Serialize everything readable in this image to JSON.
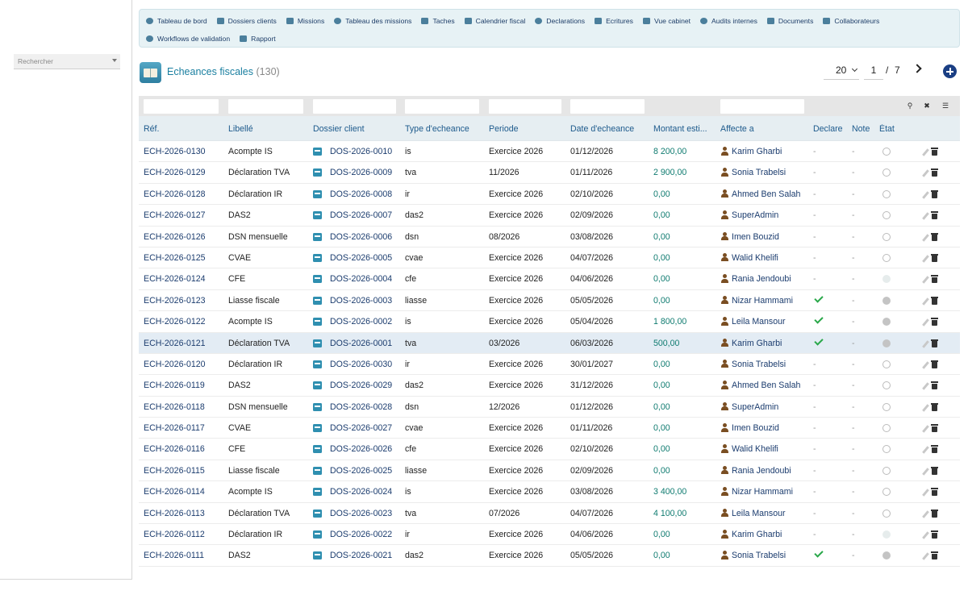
{
  "sidebar": {
    "search_placeholder": "Rechercher"
  },
  "menu": [
    {
      "label": "Tableau de bord",
      "icon": "dashboard-icon"
    },
    {
      "label": "Dossiers clients",
      "icon": "folder-open-icon"
    },
    {
      "label": "Missions",
      "icon": "briefcase-icon"
    },
    {
      "label": "Tableau des missions",
      "icon": "board-icon"
    },
    {
      "label": "Taches",
      "icon": "tasks-list-icon"
    },
    {
      "label": "Calendrier fiscal",
      "icon": "calendar-icon"
    },
    {
      "label": "Declarations",
      "icon": "file-icon"
    },
    {
      "label": "Ecritures",
      "icon": "ledger-icon"
    },
    {
      "label": "Vue cabinet",
      "icon": "scale-icon"
    },
    {
      "label": "Audits internes",
      "icon": "magnifier-icon"
    },
    {
      "label": "Documents",
      "icon": "folder-icon"
    },
    {
      "label": "Collaborateurs",
      "icon": "users-icon"
    },
    {
      "label": "Workflows de validation",
      "icon": "workflow-icon"
    },
    {
      "label": "Rapport",
      "icon": "pie-chart-icon"
    }
  ],
  "page": {
    "title": "Echeances fiscales",
    "count": "(130)"
  },
  "pagination": {
    "page_size": "20",
    "current_page": "1",
    "separator": "/",
    "total_pages": "7"
  },
  "columns": {
    "ref": "Réf.",
    "libelle": "Libellé",
    "dossier": "Dossier client",
    "type": "Type d'echeance",
    "periode": "Periode",
    "date": "Date d'echeance",
    "montant": "Montant esti...",
    "affecte": "Affecte a",
    "declare": "Declare",
    "note": "Note",
    "etat": "État"
  },
  "colors": {
    "accent": "#1a7fa0",
    "link": "#1b3c6e",
    "amount": "#0f7b70",
    "check": "#2aa84a"
  },
  "rows": [
    {
      "ref": "ECH-2026-0130",
      "libelle": "Acompte IS",
      "dossier": "DOS-2026-0010",
      "type": "is",
      "periode": "Exercice 2026",
      "date": "01/12/2026",
      "montant": "8 200,00",
      "user": "Karim Gharbi",
      "declare": "-",
      "note": "-",
      "state": "ring"
    },
    {
      "ref": "ECH-2026-0129",
      "libelle": "Déclaration TVA",
      "dossier": "DOS-2026-0009",
      "type": "tva",
      "periode": "11/2026",
      "date": "01/11/2026",
      "montant": "2 900,00",
      "user": "Sonia Trabelsi",
      "declare": "-",
      "note": "-",
      "state": "ring"
    },
    {
      "ref": "ECH-2026-0128",
      "libelle": "Déclaration IR",
      "dossier": "DOS-2026-0008",
      "type": "ir",
      "periode": "Exercice 2026",
      "date": "02/10/2026",
      "montant": "0,00",
      "user": "Ahmed Ben Salah",
      "declare": "-",
      "note": "-",
      "state": "ring"
    },
    {
      "ref": "ECH-2026-0127",
      "libelle": "DAS2",
      "dossier": "DOS-2026-0007",
      "type": "das2",
      "periode": "Exercice 2026",
      "date": "02/09/2026",
      "montant": "0,00",
      "user": "SuperAdmin",
      "declare": "-",
      "note": "-",
      "state": "ring"
    },
    {
      "ref": "ECH-2026-0126",
      "libelle": "DSN mensuelle",
      "dossier": "DOS-2026-0006",
      "type": "dsn",
      "periode": "08/2026",
      "date": "03/08/2026",
      "montant": "0,00",
      "user": "Imen Bouzid",
      "declare": "-",
      "note": "-",
      "state": "ring"
    },
    {
      "ref": "ECH-2026-0125",
      "libelle": "CVAE",
      "dossier": "DOS-2026-0005",
      "type": "cvae",
      "periode": "Exercice 2026",
      "date": "04/07/2026",
      "montant": "0,00",
      "user": "Walid Khelifi",
      "declare": "-",
      "note": "-",
      "state": "ring"
    },
    {
      "ref": "ECH-2026-0124",
      "libelle": "CFE",
      "dossier": "DOS-2026-0004",
      "type": "cfe",
      "periode": "Exercice 2026",
      "date": "04/06/2026",
      "montant": "0,00",
      "user": "Rania Jendoubi",
      "declare": "-",
      "note": "-",
      "state": "light"
    },
    {
      "ref": "ECH-2026-0123",
      "libelle": "Liasse fiscale",
      "dossier": "DOS-2026-0003",
      "type": "liasse",
      "periode": "Exercice 2026",
      "date": "05/05/2026",
      "montant": "0,00",
      "user": "Nizar Hammami",
      "declare": "check",
      "note": "-",
      "state": "grey"
    },
    {
      "ref": "ECH-2026-0122",
      "libelle": "Acompte IS",
      "dossier": "DOS-2026-0002",
      "type": "is",
      "periode": "Exercice 2026",
      "date": "05/04/2026",
      "montant": "1 800,00",
      "user": "Leila Mansour",
      "declare": "check",
      "note": "-",
      "state": "grey"
    },
    {
      "ref": "ECH-2026-0121",
      "libelle": "Déclaration TVA",
      "dossier": "DOS-2026-0001",
      "type": "tva",
      "periode": "03/2026",
      "date": "06/03/2026",
      "montant": "500,00",
      "user": "Karim Gharbi",
      "declare": "check",
      "note": "-",
      "state": "grey",
      "highlight": true
    },
    {
      "ref": "ECH-2026-0120",
      "libelle": "Déclaration IR",
      "dossier": "DOS-2026-0030",
      "type": "ir",
      "periode": "Exercice 2026",
      "date": "30/01/2027",
      "montant": "0,00",
      "user": "Sonia Trabelsi",
      "declare": "-",
      "note": "-",
      "state": "ring"
    },
    {
      "ref": "ECH-2026-0119",
      "libelle": "DAS2",
      "dossier": "DOS-2026-0029",
      "type": "das2",
      "periode": "Exercice 2026",
      "date": "31/12/2026",
      "montant": "0,00",
      "user": "Ahmed Ben Salah",
      "declare": "-",
      "note": "-",
      "state": "ring"
    },
    {
      "ref": "ECH-2026-0118",
      "libelle": "DSN mensuelle",
      "dossier": "DOS-2026-0028",
      "type": "dsn",
      "periode": "12/2026",
      "date": "01/12/2026",
      "montant": "0,00",
      "user": "SuperAdmin",
      "declare": "-",
      "note": "-",
      "state": "ring"
    },
    {
      "ref": "ECH-2026-0117",
      "libelle": "CVAE",
      "dossier": "DOS-2026-0027",
      "type": "cvae",
      "periode": "Exercice 2026",
      "date": "01/11/2026",
      "montant": "0,00",
      "user": "Imen Bouzid",
      "declare": "-",
      "note": "-",
      "state": "ring"
    },
    {
      "ref": "ECH-2026-0116",
      "libelle": "CFE",
      "dossier": "DOS-2026-0026",
      "type": "cfe",
      "periode": "Exercice 2026",
      "date": "02/10/2026",
      "montant": "0,00",
      "user": "Walid Khelifi",
      "declare": "-",
      "note": "-",
      "state": "ring"
    },
    {
      "ref": "ECH-2026-0115",
      "libelle": "Liasse fiscale",
      "dossier": "DOS-2026-0025",
      "type": "liasse",
      "periode": "Exercice 2026",
      "date": "02/09/2026",
      "montant": "0,00",
      "user": "Rania Jendoubi",
      "declare": "-",
      "note": "-",
      "state": "ring"
    },
    {
      "ref": "ECH-2026-0114",
      "libelle": "Acompte IS",
      "dossier": "DOS-2026-0024",
      "type": "is",
      "periode": "Exercice 2026",
      "date": "03/08/2026",
      "montant": "3 400,00",
      "user": "Nizar Hammami",
      "declare": "-",
      "note": "-",
      "state": "ring"
    },
    {
      "ref": "ECH-2026-0113",
      "libelle": "Déclaration TVA",
      "dossier": "DOS-2026-0023",
      "type": "tva",
      "periode": "07/2026",
      "date": "04/07/2026",
      "montant": "4 100,00",
      "user": "Leila Mansour",
      "declare": "-",
      "note": "-",
      "state": "ring"
    },
    {
      "ref": "ECH-2026-0112",
      "libelle": "Déclaration IR",
      "dossier": "DOS-2026-0022",
      "type": "ir",
      "periode": "Exercice 2026",
      "date": "04/06/2026",
      "montant": "0,00",
      "user": "Karim Gharbi",
      "declare": "-",
      "note": "-",
      "state": "light"
    },
    {
      "ref": "ECH-2026-0111",
      "libelle": "DAS2",
      "dossier": "DOS-2026-0021",
      "type": "das2",
      "periode": "Exercice 2026",
      "date": "05/05/2026",
      "montant": "0,00",
      "user": "Sonia Trabelsi",
      "declare": "check",
      "note": "-",
      "state": "grey"
    }
  ]
}
